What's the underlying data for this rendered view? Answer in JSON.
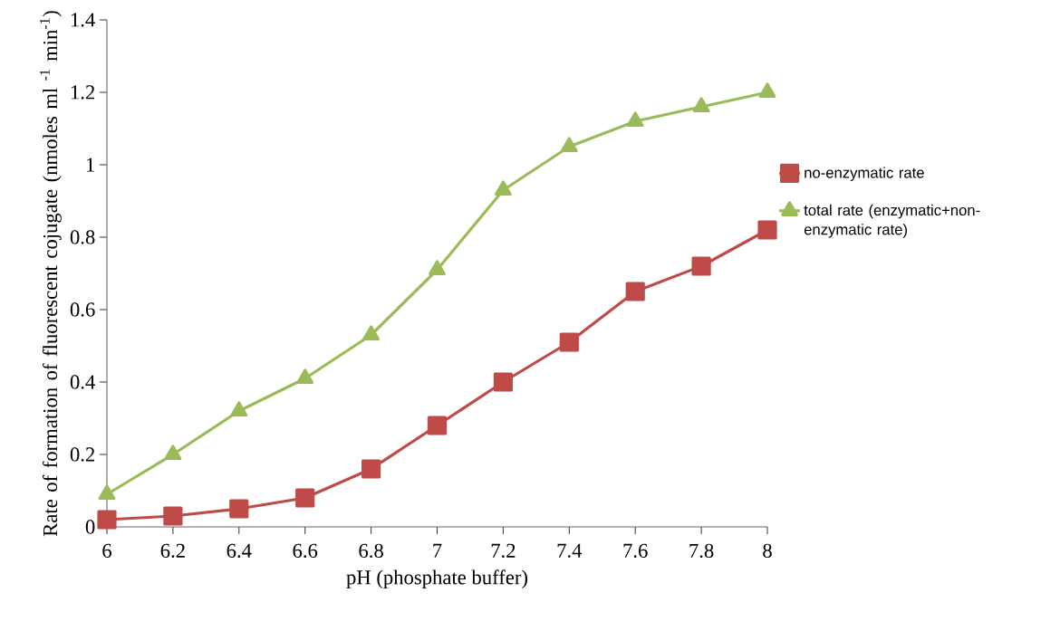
{
  "chart_data": {
    "type": "line",
    "xlabel": "pH (phosphate buffer)",
    "ylabel": "Rate of formation of fluorescent cojugate (nmoles ml $^{-1}$ min$^{-1}$)",
    "categories": [
      "6",
      "6.2",
      "6.4",
      "6.6",
      "6.8",
      "7",
      "7.2",
      "7.4",
      "7.6",
      "7.8",
      "8"
    ],
    "series": [
      {
        "name": "no-enzymatic rate",
        "color": "#be4b48",
        "marker": "square",
        "values": [
          0.02,
          0.03,
          0.05,
          0.08,
          0.16,
          0.28,
          0.4,
          0.51,
          0.65,
          0.72,
          0.82
        ]
      },
      {
        "name": "total rate (enzymatic+non-enzymatic rate)",
        "color": "#9bbb59",
        "marker": "triangle",
        "values": [
          0.09,
          0.2,
          0.32,
          0.41,
          0.53,
          0.71,
          0.93,
          1.05,
          1.12,
          1.16,
          1.2
        ]
      }
    ],
    "ylim": [
      0,
      1.4
    ],
    "yticks": [
      0,
      0.2,
      0.4,
      0.6,
      0.8,
      1,
      1.2,
      1.4
    ],
    "grid": false,
    "legend": "right",
    "line_style": "solid"
  }
}
